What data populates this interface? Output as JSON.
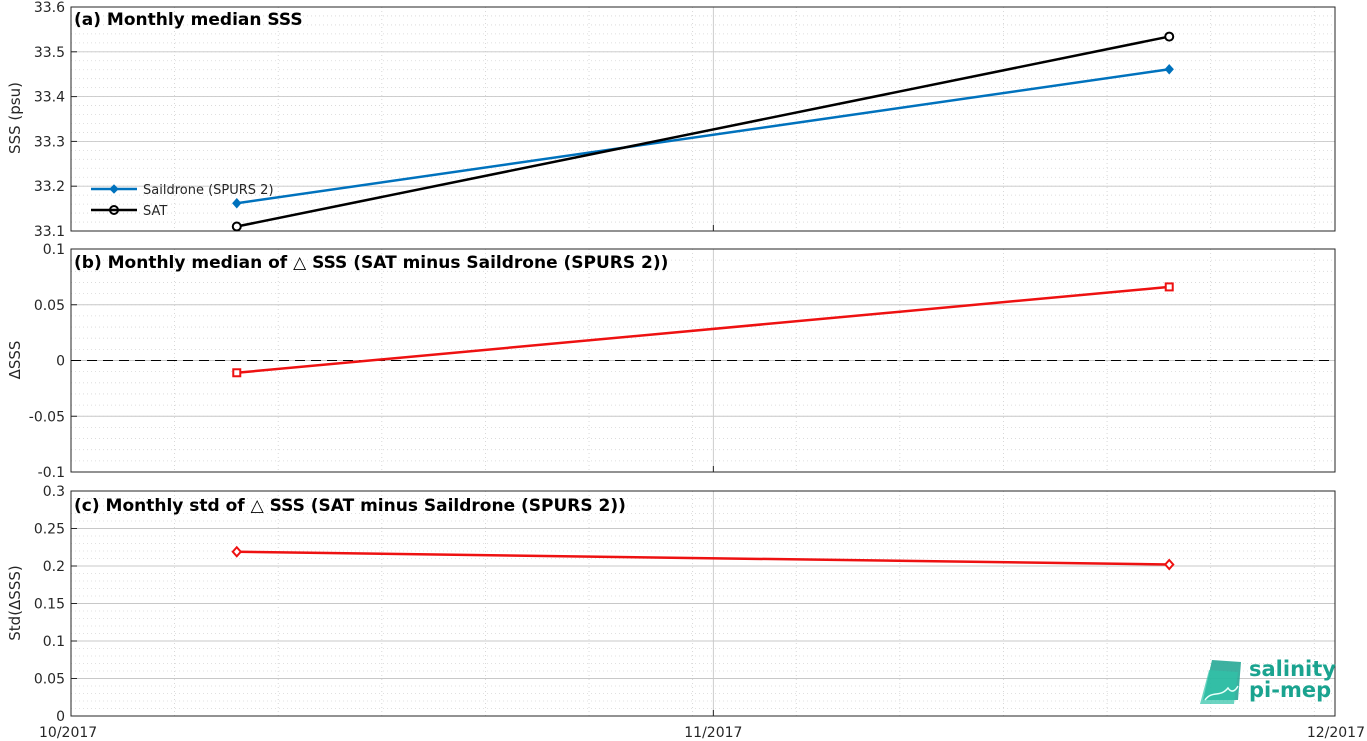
{
  "chart_data": [
    {
      "type": "line",
      "title": "(a) Monthly median SSS",
      "ylabel": "SSS (psu)",
      "ylim": [
        33.1,
        33.6
      ],
      "yticks": [
        "33.1",
        "33.2",
        "33.3",
        "33.4",
        "33.5",
        "33.6"
      ],
      "x": [
        "2017-10-09",
        "2017-11-23"
      ],
      "grid": true,
      "legend_position": "lower-left",
      "series": [
        {
          "name": "Saildrone (SPURS 2)",
          "values": [
            33.162,
            33.461
          ],
          "color": "#0072bd",
          "marker": "diamond"
        },
        {
          "name": "SAT",
          "values": [
            33.11,
            33.534
          ],
          "color": "#000000",
          "marker": "circle"
        }
      ]
    },
    {
      "type": "line",
      "title": "(b) Monthly median of △ SSS (SAT minus Saildrone (SPURS 2))",
      "ylabel": "ΔSSS",
      "ylim": [
        -0.1,
        0.1
      ],
      "yticks": [
        "-0.1",
        "-0.05",
        "0",
        "0.05",
        "0.1"
      ],
      "x": [
        "2017-10-09",
        "2017-11-23"
      ],
      "grid": true,
      "zero_line": true,
      "series": [
        {
          "values": [
            -0.011,
            0.066
          ],
          "color": "#ee1111",
          "marker": "square"
        }
      ]
    },
    {
      "type": "line",
      "title": "(c) Monthly std of △ SSS (SAT minus Saildrone (SPURS 2))",
      "ylabel": "Std(ΔSSS)",
      "ylim": [
        0,
        0.3
      ],
      "yticks": [
        "0",
        "0.05",
        "0.1",
        "0.15",
        "0.2",
        "0.25",
        "0.3"
      ],
      "x": [
        "2017-10-09",
        "2017-11-23"
      ],
      "xlim": [
        "2017-10-01",
        "2017-12-01"
      ],
      "xticks": [
        "10/2017",
        "11/2017",
        "12/2017"
      ],
      "grid": true,
      "series": [
        {
          "values": [
            0.219,
            0.202
          ],
          "color": "#ee1111",
          "marker": "diamond"
        }
      ]
    }
  ],
  "logo": {
    "line1": "salinity",
    "line2": "pi-mep"
  }
}
